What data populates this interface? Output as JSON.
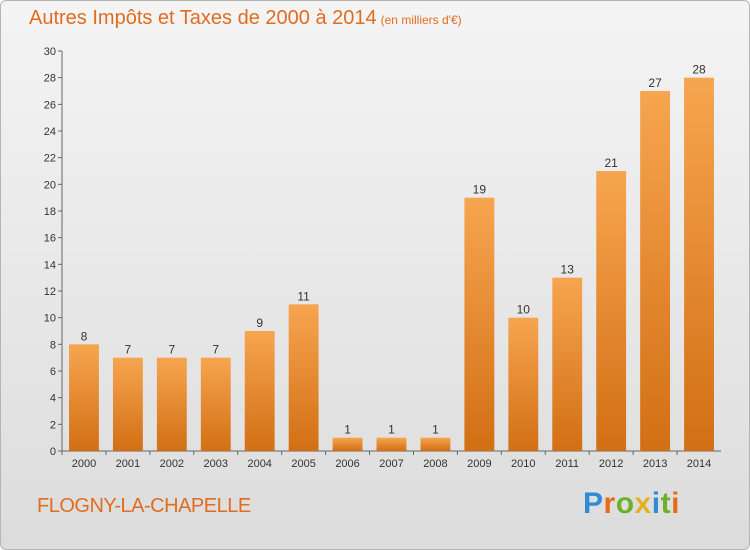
{
  "header": {
    "title": "Autres Impôts et Taxes de 2000 à 2014",
    "unit": "(en milliers d'€)"
  },
  "footer": {
    "commune": "FLOGNY-LA-CHAPELLE",
    "logo": "Proxiti"
  },
  "colors": {
    "bar_light": "#f7a550",
    "bar_dark": "#d26f14",
    "title": "#e06d1f"
  },
  "chart_data": {
    "type": "bar",
    "title": "Autres Impôts et Taxes de 2000 à 2014",
    "subtitle": "(en milliers d'€)",
    "categories": [
      "2000",
      "2001",
      "2002",
      "2003",
      "2004",
      "2005",
      "2006",
      "2007",
      "2008",
      "2009",
      "2010",
      "2011",
      "2012",
      "2013",
      "2014"
    ],
    "values": [
      8,
      7,
      7,
      7,
      9,
      11,
      1,
      1,
      1,
      19,
      10,
      13,
      21,
      27,
      28
    ],
    "ylim": [
      0,
      30
    ],
    "yticks": [
      0,
      2,
      4,
      6,
      8,
      10,
      12,
      14,
      16,
      18,
      20,
      22,
      24,
      26,
      28,
      30
    ],
    "grid": false,
    "legend": "none"
  }
}
